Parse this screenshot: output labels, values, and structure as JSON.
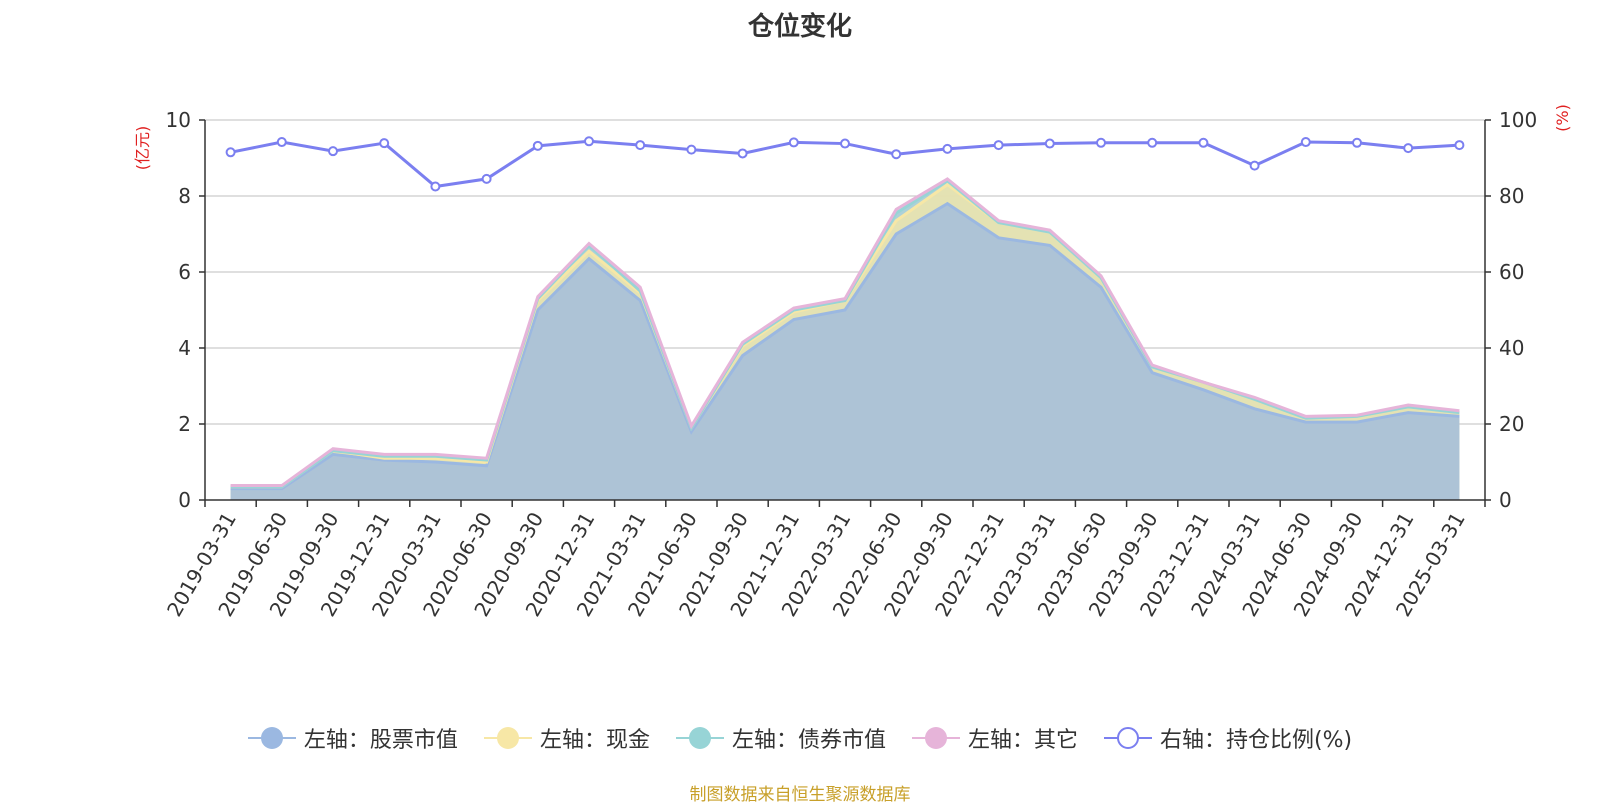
{
  "title": "仓位变化",
  "source_note": "制图数据来自恒生聚源数据库",
  "chart_data": {
    "type": "area",
    "categories": [
      "2019-03-31",
      "2019-06-30",
      "2019-09-30",
      "2019-12-31",
      "2020-03-31",
      "2020-06-30",
      "2020-09-30",
      "2020-12-31",
      "2021-03-31",
      "2021-06-30",
      "2021-09-30",
      "2021-12-31",
      "2022-03-31",
      "2022-06-30",
      "2022-09-30",
      "2022-12-31",
      "2023-03-31",
      "2023-06-30",
      "2023-09-30",
      "2023-12-31",
      "2024-03-31",
      "2024-06-30",
      "2024-09-30",
      "2024-12-31",
      "2025-03-31"
    ],
    "left_axis": {
      "label": "(亿元)",
      "min": 0,
      "max": 10,
      "ticks": [
        0,
        2,
        4,
        6,
        8,
        10
      ]
    },
    "right_axis": {
      "label": "(%)",
      "min": 0,
      "max": 100,
      "ticks": [
        0,
        20,
        40,
        60,
        80,
        100
      ]
    },
    "grid": true,
    "legend_position": "bottom",
    "series": [
      {
        "name": "左轴：股票市值",
        "axis": "left",
        "stack": true,
        "color": "#9bb8e1",
        "values": [
          0.3,
          0.3,
          1.2,
          1.05,
          1.0,
          0.9,
          5.0,
          6.35,
          5.25,
          1.8,
          3.8,
          4.75,
          5.0,
          7.0,
          7.8,
          6.9,
          6.7,
          5.6,
          3.35,
          2.9,
          2.4,
          2.05,
          2.05,
          2.3,
          2.2
        ]
      },
      {
        "name": "左轴：现金",
        "axis": "left",
        "stack": true,
        "color": "#f7e7a6",
        "values": [
          0.05,
          0.05,
          0.1,
          0.05,
          0.1,
          0.1,
          0.25,
          0.2,
          0.2,
          0.1,
          0.25,
          0.2,
          0.25,
          0.35,
          0.5,
          0.4,
          0.35,
          0.25,
          0.15,
          0.2,
          0.25,
          0.1,
          0.15,
          0.15,
          0.1
        ]
      },
      {
        "name": "左轴：债券市值",
        "axis": "left",
        "stack": true,
        "color": "#97d4d6",
        "values": [
          0.0,
          0.0,
          0.0,
          0.05,
          0.05,
          0.05,
          0.05,
          0.15,
          0.05,
          0.0,
          0.05,
          0.05,
          0.0,
          0.2,
          0.1,
          0.0,
          0.0,
          0.0,
          0.0,
          0.0,
          0.0,
          0.0,
          0.0,
          0.0,
          0.0
        ]
      },
      {
        "name": "左轴：其它",
        "axis": "left",
        "stack": true,
        "color": "#e6b4d9",
        "values": [
          0.03,
          0.03,
          0.05,
          0.05,
          0.05,
          0.05,
          0.05,
          0.05,
          0.1,
          0.05,
          0.05,
          0.05,
          0.05,
          0.1,
          0.05,
          0.05,
          0.05,
          0.05,
          0.05,
          0.0,
          0.05,
          0.05,
          0.03,
          0.05,
          0.05
        ]
      },
      {
        "name": "右轴：持仓比例(%)",
        "axis": "right",
        "stack": false,
        "color": "#7b7ff0",
        "values": [
          91.5,
          94.2,
          91.8,
          93.9,
          82.5,
          84.5,
          93.2,
          94.4,
          93.4,
          92.2,
          91.2,
          94.1,
          93.8,
          91.0,
          92.4,
          93.4,
          93.8,
          94.0,
          94.0,
          94.0,
          88.0,
          94.2,
          94.0,
          92.6,
          93.4
        ]
      }
    ]
  }
}
